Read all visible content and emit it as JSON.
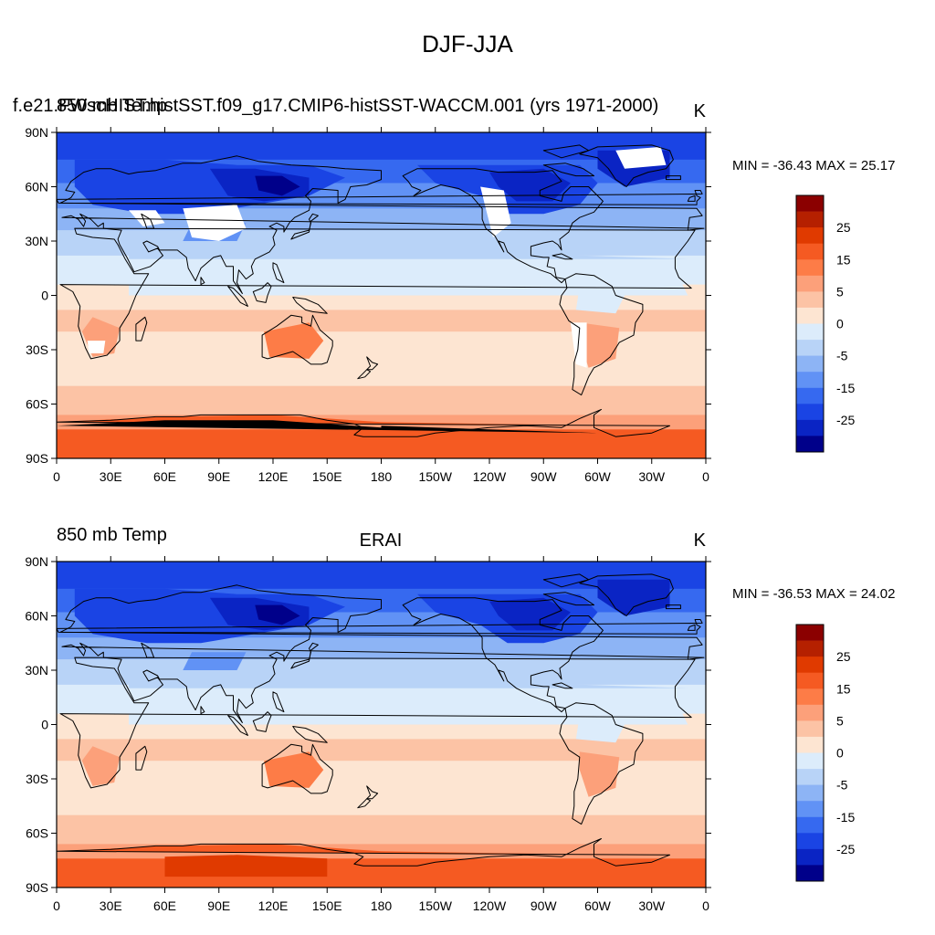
{
  "figure": {
    "title": "DJF-JJA"
  },
  "panels": [
    {
      "left_label": "850 mb Temp",
      "center_label": "",
      "overlay_label": "f.e21.FWscHIST.histSST.f09_g17.CMIP6-histSST-WACCM.001 (yrs 1971-2000)",
      "units": "K",
      "stats": "MIN = -36.43 MAX =  25.17",
      "masked_regions": true,
      "antarctic_blank": true
    },
    {
      "left_label": "850 mb Temp",
      "center_label": "ERAI",
      "overlay_label": "",
      "units": "K",
      "stats": "MIN = -36.53 MAX =  24.02",
      "masked_regions": false,
      "antarctic_blank": false
    }
  ],
  "lat_ticks": [
    "90N",
    "60N",
    "30N",
    "0",
    "30S",
    "60S",
    "90S"
  ],
  "lon_ticks": [
    "0",
    "30E",
    "60E",
    "90E",
    "120E",
    "150E",
    "180",
    "150W",
    "120W",
    "90W",
    "60W",
    "30W",
    "0"
  ],
  "colorbar": {
    "labels": [
      "25",
      "15",
      "5",
      "0",
      "-5",
      "-15",
      "-25"
    ],
    "colors": [
      "#8b0000",
      "#b52000",
      "#e03a00",
      "#f55a22",
      "#fd7c47",
      "#fca07a",
      "#fcc3a5",
      "#fde5d2",
      "#dcecfb",
      "#b8d3f7",
      "#8db4f5",
      "#6192f5",
      "#3669f0",
      "#1a44e4",
      "#0a24c4",
      "#00008a"
    ]
  }
}
